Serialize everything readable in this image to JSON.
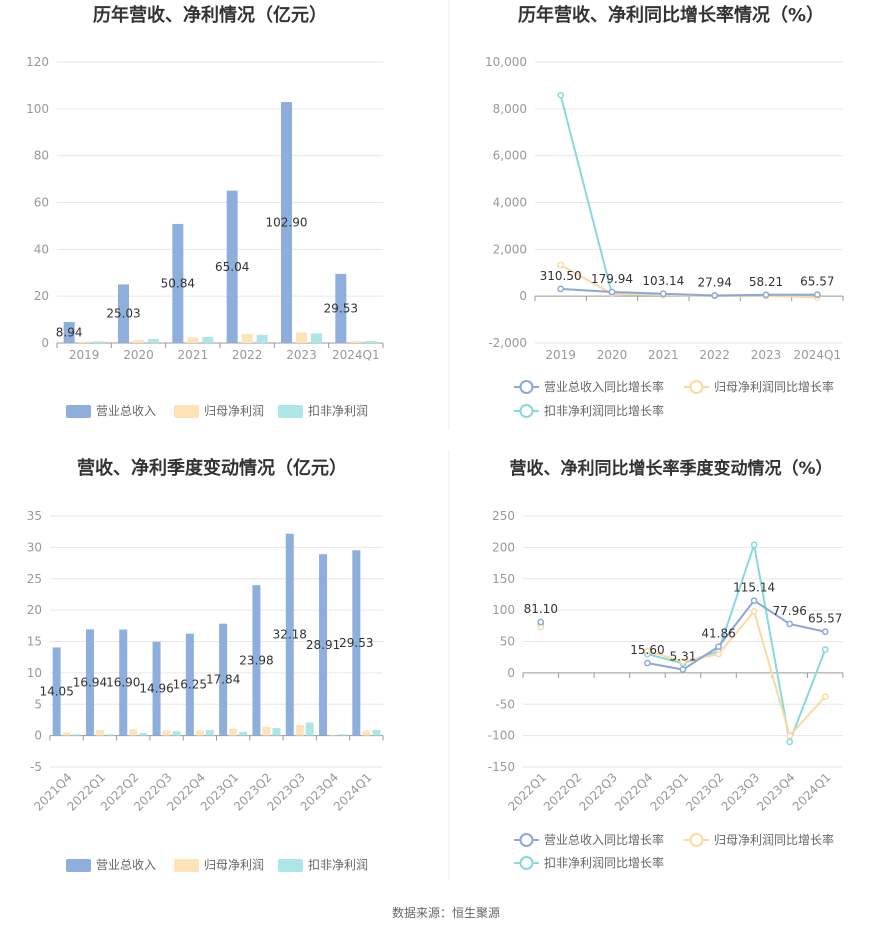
{
  "source": "数据来源：恒生聚源",
  "legend_icons": {
    "bar": "filled-rect-swatch",
    "line": "circle-line-swatch"
  },
  "colors": {
    "revenue": "#8eaedb",
    "net_profit": "#fde3b7",
    "deducted_profit": "#ace6e6",
    "rev_growth_line": "#8da7d6",
    "np_growth_line": "#fbd9a1",
    "dp_growth_line": "#86d9dc",
    "grid": "#e6e6e6",
    "axis": "#999999",
    "divider": "#eeeeee"
  },
  "chart_data": [
    {
      "id": "annual-values",
      "type": "bar",
      "title": "历年营收、净利情况（亿元）",
      "categories": [
        "2019",
        "2020",
        "2021",
        "2022",
        "2023",
        "2024Q1"
      ],
      "ylim": [
        0,
        120
      ],
      "yticks": [
        0,
        20,
        40,
        60,
        80,
        100,
        120
      ],
      "ytick_labels": [
        "0",
        "20",
        "40",
        "60",
        "80",
        "100",
        "120"
      ],
      "grid": true,
      "legend_position": "bottom",
      "series": [
        {
          "name": "营业总收入",
          "color_key": "revenue",
          "values": [
            8.94,
            25.03,
            50.84,
            65.04,
            102.9,
            29.53
          ]
        },
        {
          "name": "归母净利润",
          "color_key": "net_profit",
          "values": [
            0.6,
            1.2,
            2.4,
            3.8,
            4.5,
            0.8
          ]
        },
        {
          "name": "扣非净利润",
          "color_key": "deducted_profit",
          "values": [
            0.7,
            1.7,
            2.6,
            3.5,
            4.1,
            0.9
          ]
        }
      ],
      "data_labels": {
        "series": 0,
        "texts": [
          "8.94",
          "25.03",
          "50.84",
          "65.04",
          "102.90",
          "29.53"
        ]
      }
    },
    {
      "id": "annual-growth",
      "type": "line",
      "title": "历年营收、净利同比增长率情况（%）",
      "categories": [
        "2019",
        "2020",
        "2021",
        "2022",
        "2023",
        "2024Q1"
      ],
      "ylim": [
        -2000,
        10000
      ],
      "yticks": [
        -2000,
        0,
        2000,
        4000,
        6000,
        8000,
        10000
      ],
      "ytick_labels": [
        "-2,000",
        "0",
        "2,000",
        "4,000",
        "6,000",
        "8,000",
        "10,000"
      ],
      "grid": true,
      "legend_position": "bottom",
      "series": [
        {
          "name": "营业总收入同比增长率",
          "color_key": "rev_growth_line",
          "values": [
            310.5,
            179.94,
            103.14,
            27.94,
            58.21,
            65.57
          ]
        },
        {
          "name": "归母净利润同比增长率",
          "color_key": "np_growth_line",
          "values": [
            1330,
            105,
            60,
            20,
            15,
            -50
          ]
        },
        {
          "name": "扣非净利润同比增长率",
          "color_key": "dp_growth_line",
          "values": [
            8580,
            90,
            50,
            15,
            10,
            -20
          ]
        }
      ],
      "data_labels": {
        "series": 0,
        "texts": [
          "310.50",
          "179.94",
          "103.14",
          "27.94",
          "58.21",
          "65.57"
        ]
      }
    },
    {
      "id": "quarterly-values",
      "type": "bar",
      "title": "营收、净利季度变动情况（亿元）",
      "categories": [
        "2021Q4",
        "2022Q1",
        "2022Q2",
        "2022Q3",
        "2022Q4",
        "2023Q1",
        "2023Q2",
        "2023Q3",
        "2023Q4",
        "2024Q1"
      ],
      "ylim": [
        -5,
        35
      ],
      "yticks": [
        -5,
        0,
        5,
        10,
        15,
        20,
        25,
        30,
        35
      ],
      "ytick_labels": [
        "-5",
        "0",
        "5",
        "10",
        "15",
        "20",
        "25",
        "30",
        "35"
      ],
      "rotate_xlabels": true,
      "grid": true,
      "legend_position": "bottom",
      "series": [
        {
          "name": "营业总收入",
          "color_key": "revenue",
          "values": [
            14.05,
            16.94,
            16.9,
            14.96,
            16.25,
            17.84,
            23.98,
            32.18,
            28.91,
            29.53
          ]
        },
        {
          "name": "归母净利润",
          "color_key": "net_profit",
          "values": [
            0.5,
            0.9,
            1.0,
            0.8,
            0.8,
            1.1,
            1.4,
            1.7,
            -0.1,
            0.8
          ]
        },
        {
          "name": "扣非净利润",
          "color_key": "deducted_profit",
          "values": [
            0.2,
            0.2,
            0.4,
            0.7,
            0.9,
            0.6,
            1.2,
            2.1,
            0.2,
            0.9
          ]
        }
      ],
      "data_labels": {
        "series": 0,
        "texts": [
          "14.05",
          "16.94",
          "16.90",
          "14.96",
          "16.25",
          "17.84",
          "23.98",
          "32.18",
          "28.91",
          "29.53"
        ]
      }
    },
    {
      "id": "quarterly-growth",
      "type": "line",
      "title": "营收、净利同比增长率季度变动情况（%）",
      "categories": [
        "2022Q1",
        "2022Q2",
        "2022Q3",
        "2022Q4",
        "2023Q1",
        "2023Q2",
        "2023Q3",
        "2023Q4",
        "2024Q1"
      ],
      "ylim": [
        -150,
        250
      ],
      "yticks": [
        -150,
        -100,
        -50,
        0,
        50,
        100,
        150,
        200,
        250
      ],
      "ytick_labels": [
        "-150",
        "-100",
        "-50",
        "0",
        "50",
        "100",
        "150",
        "200",
        "250"
      ],
      "rotate_xlabels": true,
      "grid": true,
      "legend_position": "bottom",
      "series": [
        {
          "name": "营业总收入同比增长率",
          "color_key": "rev_growth_line",
          "values": [
            81.1,
            null,
            null,
            15.6,
            5.31,
            41.86,
            115.14,
            77.96,
            65.57
          ]
        },
        {
          "name": "归母净利润同比增长率",
          "color_key": "np_growth_line",
          "values": [
            73,
            null,
            null,
            35,
            18,
            30,
            98,
            -100,
            -38
          ]
        },
        {
          "name": "扣非净利润同比增长率",
          "color_key": "dp_growth_line",
          "values": [
            78,
            null,
            null,
            30,
            15,
            35,
            204,
            -110,
            37
          ]
        }
      ],
      "data_labels": {
        "series": 0,
        "texts": [
          "81.10",
          null,
          null,
          "15.60",
          "5.31",
          "41.86",
          "115.14",
          "77.96",
          "65.57"
        ]
      }
    }
  ]
}
